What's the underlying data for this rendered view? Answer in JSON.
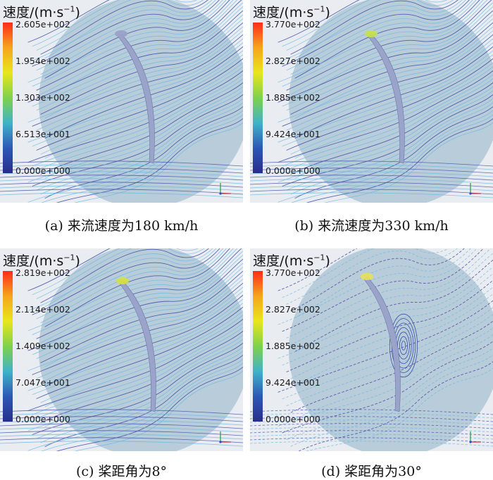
{
  "colors": {
    "bg": "#e9ecf1",
    "line_dark": "#3e4fa5",
    "line_light": "#69b7e0",
    "disk": "#8fb2c6"
  },
  "legend_colors": [
    "#ff2b1a",
    "#f5a51c",
    "#e8e61d",
    "#7fd14b",
    "#3fb3c7",
    "#2d58b6",
    "#282e8c"
  ],
  "panels": [
    {
      "title_main": "速度/(m·s",
      "title_sup": "−1",
      "title_end": ")",
      "ticks": [
        "2.605e+002",
        "1.954e+002",
        "1.303e+002",
        "6.513e+001",
        "0.000e+000"
      ],
      "caption": "(a) 来流速度为180 km/h"
    },
    {
      "title_main": "速度/(m·s",
      "title_sup": "−1",
      "title_end": ")",
      "ticks": [
        "3.770e+002",
        "2.827e+002",
        "1.885e+002",
        "9.424e+001",
        "0.000e+000"
      ],
      "caption": "(b) 来流速度为330 km/h"
    },
    {
      "title_main": "速度/(m·s",
      "title_sup": "−1",
      "title_end": ")",
      "ticks": [
        "2.819e+002",
        "2.114e+002",
        "1.409e+002",
        "7.047e+001",
        "0.000e+000"
      ],
      "caption": "(c) 桨距角为8°"
    },
    {
      "title_main": "速度/(m·s",
      "title_sup": "−1",
      "title_end": ")",
      "ticks": [
        "3.770e+002",
        "2.827e+002",
        "1.885e+002",
        "9.424e+001",
        "0.000e+000"
      ],
      "caption": "(d) 桨距角为30°"
    }
  ]
}
